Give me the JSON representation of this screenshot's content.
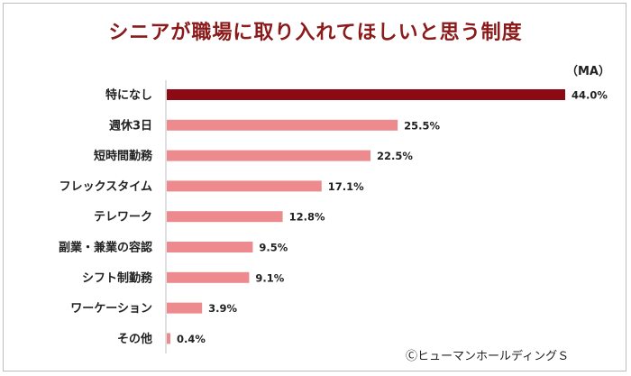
{
  "chart_data": {
    "type": "bar",
    "orientation": "horizontal",
    "title": "シニアが職場に取り入れてほしいと思う制度",
    "unit_label": "（MA）",
    "categories": [
      "特になし",
      "週休3日",
      "短時間勤務",
      "フレックスタイム",
      "テレワーク",
      "副業・兼業の容認",
      "シフト制勤務",
      "ワーケーション",
      "その他"
    ],
    "values": [
      44.0,
      25.5,
      22.5,
      17.1,
      12.8,
      9.5,
      9.1,
      3.9,
      0.4
    ],
    "value_labels": [
      "44.0%",
      "25.5%",
      "22.5%",
      "17.1%",
      "12.8%",
      "9.5%",
      "9.1%",
      "3.9%",
      "0.4%"
    ],
    "highlight_index": 0,
    "colors": {
      "highlight": "#8b0a14",
      "default": "#ec8a8e",
      "title": "#8b1a1a"
    },
    "xlim": [
      0,
      44.0
    ],
    "grid": false,
    "legend": "none"
  },
  "copyright": "ⒸヒューマンホールディングＳ"
}
